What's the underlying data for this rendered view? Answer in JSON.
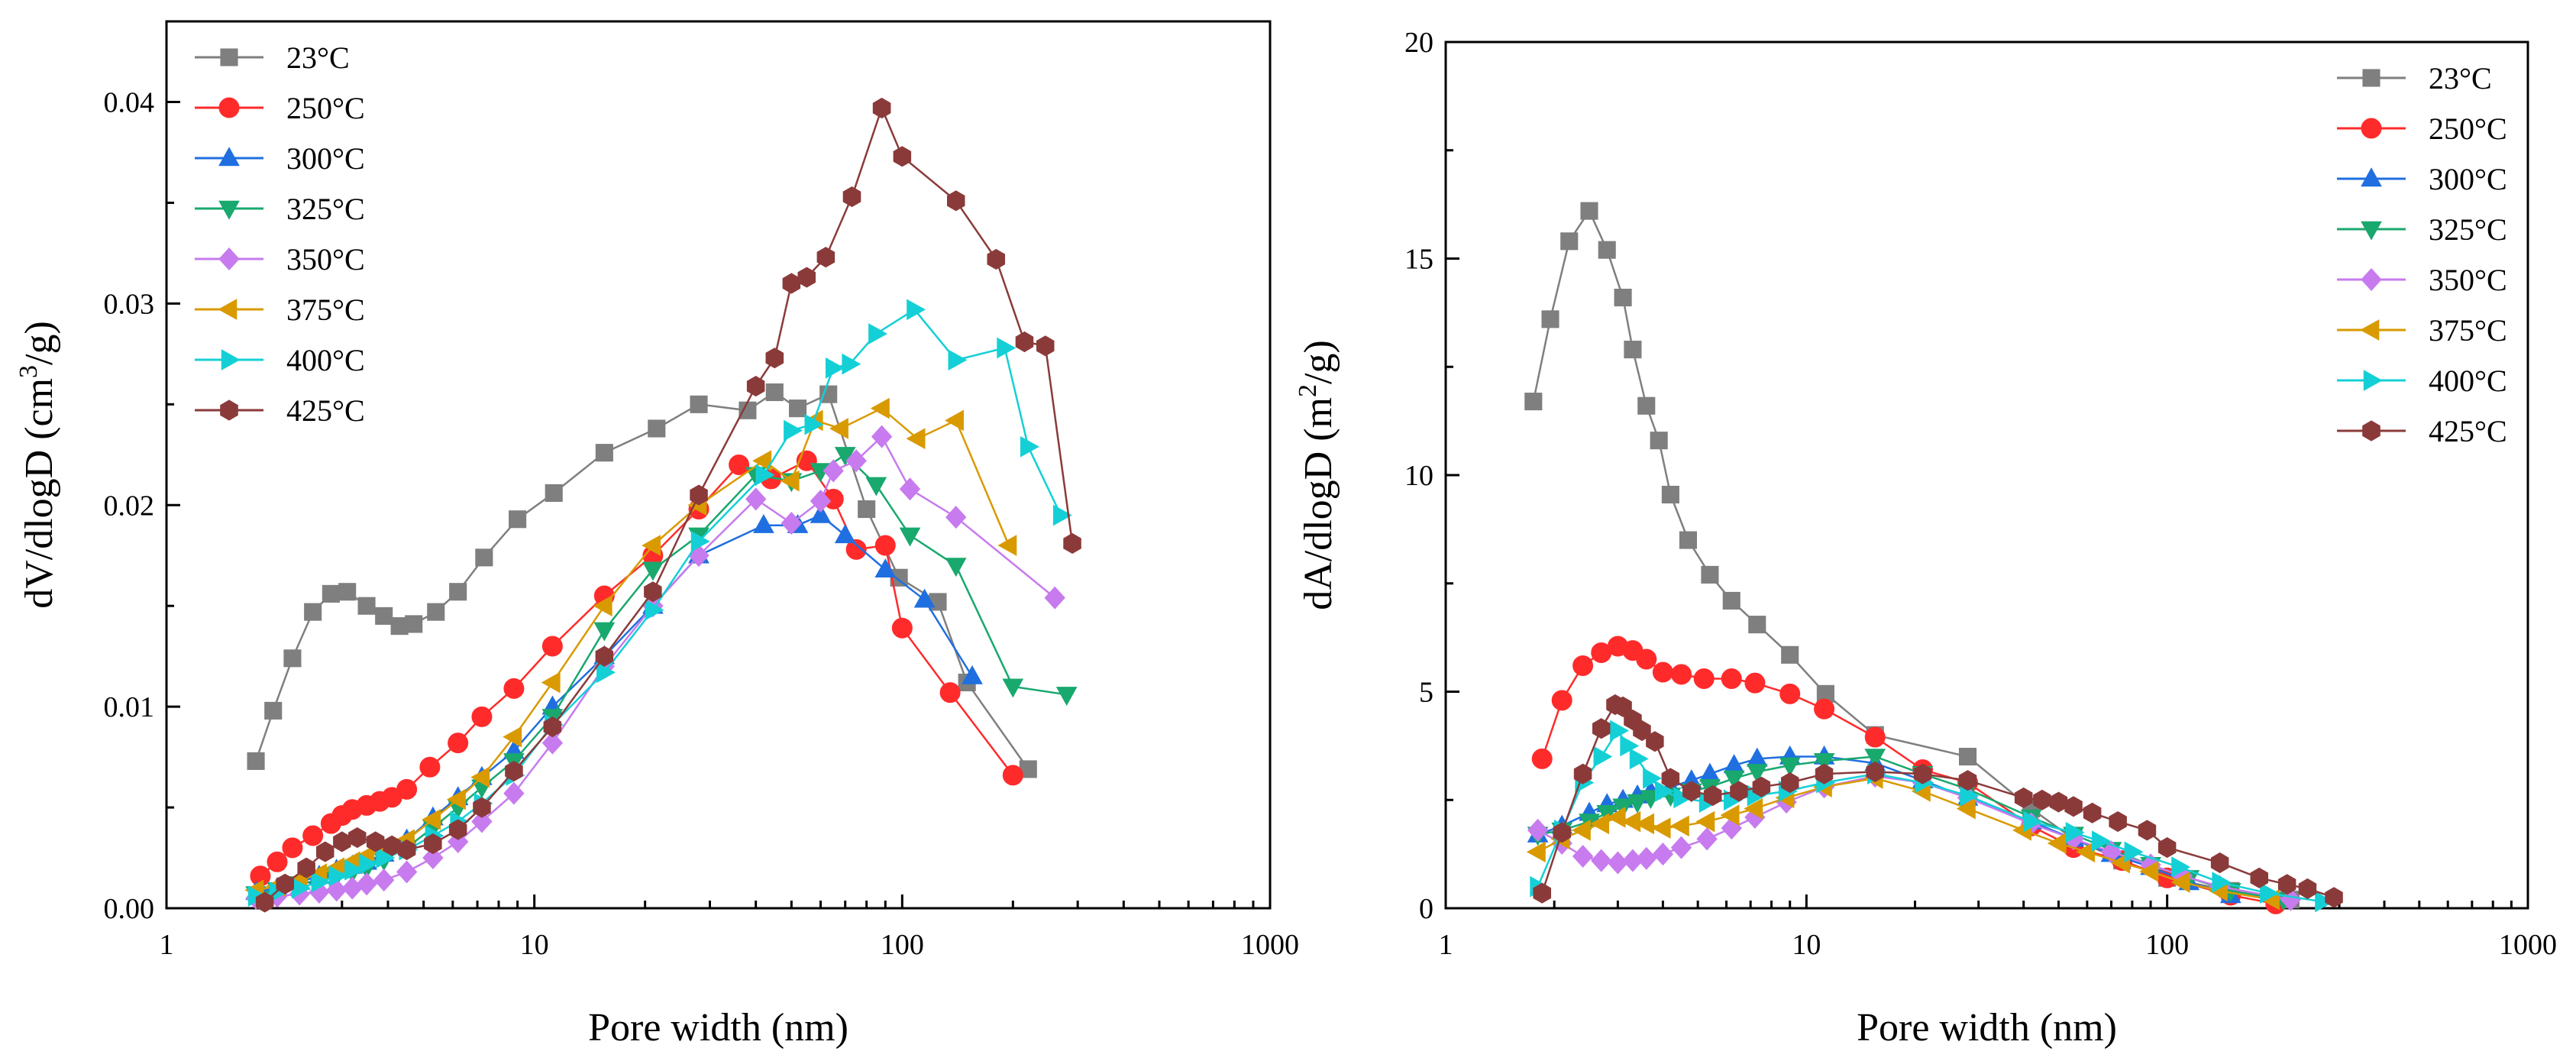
{
  "chart_data": [
    {
      "type": "line",
      "id": "pore-volume",
      "xscale": "log",
      "xlim": [
        1,
        1000
      ],
      "ylim": [
        0,
        0.044
      ],
      "xlabel": "Pore width (nm)",
      "ylabel_main": "dV/dlogD (cm",
      "ylabel_sup": "3",
      "ylabel_tail": "/g)",
      "x_ticks": [
        1,
        10,
        100,
        1000
      ],
      "x_tick_labels": [
        "1",
        "10",
        "100",
        "1000"
      ],
      "y_ticks": [
        0,
        0.01,
        0.02,
        0.03,
        0.04
      ],
      "y_tick_labels": [
        "0.00",
        "0.01",
        "0.02",
        "0.03",
        "0.04"
      ],
      "legend_position": "top-left",
      "series": [
        {
          "name": "23°C",
          "color": "#7f7f7f",
          "marker": "square",
          "x": [
            1.75,
            1.95,
            2.2,
            2.5,
            2.8,
            3.1,
            3.5,
            3.9,
            4.3,
            4.7,
            5.4,
            6.2,
            7.3,
            9.0,
            11.3,
            15.5,
            21.5,
            28,
            38,
            45,
            52,
            63,
            80,
            98,
            125,
            150,
            220
          ],
          "y": [
            0.0073,
            0.0098,
            0.0124,
            0.0147,
            0.0156,
            0.0157,
            0.015,
            0.0145,
            0.014,
            0.0141,
            0.0147,
            0.0157,
            0.0174,
            0.0193,
            0.0206,
            0.0226,
            0.0238,
            0.025,
            0.0247,
            0.0256,
            0.0248,
            0.0255,
            0.0198,
            0.0164,
            0.0152,
            0.0112,
            0.0069
          ]
        },
        {
          "name": "250°C",
          "color": "#ff2b2b",
          "marker": "circle",
          "x": [
            1.8,
            2.0,
            2.2,
            2.5,
            2.8,
            3.0,
            3.2,
            3.5,
            3.8,
            4.1,
            4.5,
            5.2,
            6.2,
            7.2,
            8.8,
            11.2,
            15.5,
            21,
            28,
            36,
            44,
            55,
            65,
            75,
            90,
            100,
            135,
            200
          ],
          "y": [
            0.0016,
            0.0023,
            0.003,
            0.0036,
            0.0042,
            0.0046,
            0.0049,
            0.0051,
            0.0053,
            0.0055,
            0.0059,
            0.007,
            0.0082,
            0.0095,
            0.0109,
            0.013,
            0.0155,
            0.0175,
            0.0198,
            0.022,
            0.0213,
            0.0222,
            0.0203,
            0.0178,
            0.018,
            0.0139,
            0.0107,
            0.0066
          ]
        },
        {
          "name": "300°C",
          "color": "#1f6fe0",
          "marker": "triangle-up",
          "x": [
            1.75,
            2.0,
            2.3,
            2.6,
            2.9,
            3.2,
            3.5,
            3.9,
            4.5,
            5.3,
            6.2,
            7.2,
            8.8,
            11.2,
            15.5,
            21,
            28,
            42,
            52,
            60,
            70,
            90,
            115,
            155
          ],
          "y": [
            0.0008,
            0.001,
            0.0013,
            0.0016,
            0.0019,
            0.0021,
            0.0023,
            0.0027,
            0.0034,
            0.0045,
            0.0055,
            0.0065,
            0.0078,
            0.01,
            0.0125,
            0.015,
            0.0175,
            0.019,
            0.019,
            0.0195,
            0.0185,
            0.0168,
            0.0153,
            0.0115
          ]
        },
        {
          "name": "325°C",
          "color": "#19a86e",
          "marker": "triangle-down",
          "x": [
            1.75,
            2.0,
            2.3,
            2.6,
            2.9,
            3.2,
            3.5,
            3.9,
            4.5,
            5.3,
            6.2,
            7.2,
            8.8,
            11.2,
            15.5,
            21,
            28,
            40,
            50,
            60,
            70,
            85,
            105,
            140,
            200,
            280
          ],
          "y": [
            0.0007,
            0.0009,
            0.0012,
            0.0014,
            0.0016,
            0.0018,
            0.002,
            0.0024,
            0.003,
            0.004,
            0.005,
            0.006,
            0.0073,
            0.0095,
            0.0138,
            0.0168,
            0.0185,
            0.0215,
            0.0212,
            0.0217,
            0.0225,
            0.021,
            0.0185,
            0.017,
            0.011,
            0.0106
          ]
        },
        {
          "name": "350°C",
          "color": "#c77bee",
          "marker": "diamond",
          "x": [
            1.75,
            2.0,
            2.3,
            2.6,
            2.9,
            3.2,
            3.5,
            3.9,
            4.5,
            5.3,
            6.2,
            7.2,
            8.8,
            11.2,
            15.5,
            21,
            28,
            40,
            50,
            60,
            65,
            75,
            88,
            105,
            140,
            260
          ],
          "y": [
            0.0005,
            0.0006,
            0.0007,
            0.0008,
            0.0009,
            0.001,
            0.0012,
            0.0014,
            0.0018,
            0.0025,
            0.0033,
            0.0043,
            0.0057,
            0.0082,
            0.012,
            0.015,
            0.0175,
            0.0203,
            0.0191,
            0.0202,
            0.0217,
            0.0222,
            0.0234,
            0.0208,
            0.0194,
            0.0154
          ]
        },
        {
          "name": "375°C",
          "color": "#d99a00",
          "marker": "triangle-left",
          "x": [
            1.75,
            2.0,
            2.3,
            2.6,
            2.9,
            3.2,
            3.5,
            3.9,
            4.5,
            5.3,
            6.2,
            7.2,
            8.8,
            11.2,
            15.5,
            21,
            28,
            42,
            50,
            58,
            68,
            88,
            110,
            140,
            195
          ],
          "y": [
            0.0009,
            0.0011,
            0.0014,
            0.0017,
            0.002,
            0.0023,
            0.0026,
            0.0029,
            0.0034,
            0.0044,
            0.0054,
            0.0065,
            0.0085,
            0.0112,
            0.015,
            0.018,
            0.02,
            0.0222,
            0.0212,
            0.0242,
            0.0238,
            0.0248,
            0.0233,
            0.0242,
            0.018
          ]
        },
        {
          "name": "400°C",
          "color": "#14d0d6",
          "marker": "triangle-right",
          "x": [
            1.75,
            2.0,
            2.3,
            2.6,
            2.9,
            3.2,
            3.5,
            3.9,
            4.5,
            5.3,
            6.2,
            7.2,
            8.8,
            11.2,
            15.5,
            21,
            28,
            42,
            50,
            57,
            65,
            72,
            85,
            108,
            140,
            190,
            220,
            270
          ],
          "y": [
            0.0006,
            0.0008,
            0.001,
            0.0013,
            0.0016,
            0.0019,
            0.0022,
            0.0025,
            0.0029,
            0.0036,
            0.0043,
            0.0052,
            0.0066,
            0.0091,
            0.0117,
            0.0148,
            0.0182,
            0.0215,
            0.0237,
            0.024,
            0.0268,
            0.027,
            0.0285,
            0.0297,
            0.0272,
            0.0278,
            0.0229,
            0.0195
          ]
        },
        {
          "name": "425°C",
          "color": "#8b3a3a",
          "marker": "hexagon",
          "x": [
            1.85,
            2.1,
            2.4,
            2.7,
            3.0,
            3.3,
            3.7,
            4.1,
            4.5,
            5.3,
            6.2,
            7.2,
            8.8,
            11.2,
            15.5,
            21,
            28,
            40,
            45,
            50,
            55,
            62,
            73,
            88,
            100,
            140,
            180,
            215,
            245,
            290
          ],
          "y": [
            0.0003,
            0.0012,
            0.002,
            0.0028,
            0.0033,
            0.0035,
            0.0033,
            0.0031,
            0.0029,
            0.0032,
            0.0039,
            0.005,
            0.0068,
            0.009,
            0.0125,
            0.0157,
            0.0205,
            0.0259,
            0.0273,
            0.031,
            0.0313,
            0.0323,
            0.0353,
            0.0397,
            0.0373,
            0.0351,
            0.0322,
            0.0281,
            0.0279,
            0.0181
          ]
        }
      ]
    },
    {
      "type": "line",
      "id": "pore-area",
      "xscale": "log",
      "xlim": [
        1,
        1000
      ],
      "ylim": [
        0,
        20
      ],
      "xlabel": "Pore width (nm)",
      "ylabel_main": "dA/dlogD (m",
      "ylabel_sup": "2",
      "ylabel_tail": "/g)",
      "x_ticks": [
        1,
        10,
        100,
        1000
      ],
      "x_tick_labels": [
        "1",
        "10",
        "100",
        "1000"
      ],
      "y_ticks": [
        0,
        5,
        10,
        15,
        20
      ],
      "y_tick_labels": [
        "0",
        "5",
        "10",
        "15",
        "20"
      ],
      "legend_position": "top-right",
      "series": [
        {
          "name": "23°C",
          "color": "#7f7f7f",
          "marker": "square",
          "x": [
            1.75,
            1.95,
            2.2,
            2.5,
            2.8,
            3.1,
            3.3,
            3.6,
            3.9,
            4.2,
            4.7,
            5.4,
            6.2,
            7.3,
            9.0,
            11.3,
            15.5,
            28,
            42,
            55,
            75,
            100,
            150,
            220
          ],
          "y": [
            11.7,
            13.6,
            15.4,
            16.1,
            15.2,
            14.1,
            12.9,
            11.6,
            10.8,
            9.55,
            8.5,
            7.7,
            7.1,
            6.55,
            5.85,
            4.95,
            4.0,
            3.5,
            2.3,
            1.6,
            1.1,
            0.7,
            0.4,
            0.2
          ]
        },
        {
          "name": "250°C",
          "color": "#ff2b2b",
          "marker": "circle",
          "x": [
            1.85,
            2.1,
            2.4,
            2.7,
            3.0,
            3.3,
            3.6,
            4.0,
            4.5,
            5.2,
            6.2,
            7.2,
            9.0,
            11.2,
            15.5,
            21,
            28,
            42,
            55,
            75,
            100,
            150,
            200
          ],
          "y": [
            3.45,
            4.8,
            5.6,
            5.9,
            6.05,
            5.95,
            5.75,
            5.45,
            5.4,
            5.3,
            5.3,
            5.2,
            4.95,
            4.6,
            3.95,
            3.2,
            2.9,
            1.9,
            1.4,
            1.1,
            0.7,
            0.3,
            0.1
          ]
        },
        {
          "name": "300°C",
          "color": "#1f6fe0",
          "marker": "triangle-up",
          "x": [
            1.8,
            2.1,
            2.5,
            2.8,
            3.1,
            3.4,
            3.7,
            4.2,
            4.8,
            5.4,
            6.3,
            7.3,
            9.0,
            11.2,
            15.5,
            21,
            28,
            42,
            55,
            70,
            90,
            115,
            150
          ],
          "y": [
            1.7,
            1.9,
            2.2,
            2.4,
            2.5,
            2.6,
            2.7,
            2.8,
            2.95,
            3.1,
            3.3,
            3.45,
            3.5,
            3.5,
            3.35,
            2.95,
            2.55,
            2.0,
            1.6,
            1.25,
            0.95,
            0.6,
            0.3
          ]
        },
        {
          "name": "325°C",
          "color": "#19a86e",
          "marker": "triangle-down",
          "x": [
            1.8,
            2.1,
            2.5,
            2.8,
            3.1,
            3.4,
            3.7,
            4.2,
            4.8,
            5.4,
            6.3,
            7.3,
            9.0,
            11.2,
            15.5,
            21,
            28,
            42,
            55,
            70,
            90,
            115,
            150,
            210
          ],
          "y": [
            1.7,
            1.8,
            2.0,
            2.2,
            2.35,
            2.45,
            2.55,
            2.6,
            2.7,
            2.8,
            3.0,
            3.15,
            3.3,
            3.4,
            3.5,
            3.1,
            2.75,
            2.1,
            1.7,
            1.35,
            1.0,
            0.7,
            0.4,
            0.2
          ]
        },
        {
          "name": "350°C",
          "color": "#c77bee",
          "marker": "diamond",
          "x": [
            1.8,
            2.1,
            2.4,
            2.7,
            3.0,
            3.3,
            3.6,
            4.0,
            4.5,
            5.3,
            6.2,
            7.2,
            8.8,
            11.2,
            15.5,
            21,
            28,
            42,
            55,
            70,
            90,
            110,
            140,
            220
          ],
          "y": [
            1.8,
            1.5,
            1.2,
            1.1,
            1.05,
            1.1,
            1.15,
            1.25,
            1.4,
            1.6,
            1.85,
            2.1,
            2.45,
            2.8,
            3.05,
            2.9,
            2.55,
            1.95,
            1.6,
            1.3,
            1.0,
            0.75,
            0.5,
            0.2
          ]
        },
        {
          "name": "375°C",
          "color": "#d99a00",
          "marker": "triangle-left",
          "x": [
            1.8,
            2.1,
            2.4,
            2.7,
            3.0,
            3.3,
            3.6,
            4.0,
            4.5,
            5.3,
            6.2,
            7.2,
            8.8,
            11.2,
            15.5,
            21,
            28,
            40,
            50,
            60,
            75,
            90,
            110,
            140,
            195
          ],
          "y": [
            1.3,
            1.6,
            1.8,
            1.95,
            2.1,
            2.0,
            1.95,
            1.85,
            1.9,
            2.0,
            2.15,
            2.3,
            2.55,
            2.8,
            3.0,
            2.7,
            2.3,
            1.8,
            1.5,
            1.3,
            1.05,
            0.85,
            0.6,
            0.4,
            0.2
          ]
        },
        {
          "name": "400°C",
          "color": "#14d0d6",
          "marker": "triangle-right",
          "x": [
            1.8,
            2.1,
            2.4,
            2.7,
            3.0,
            3.2,
            3.4,
            3.7,
            4.0,
            4.5,
            5.3,
            6.2,
            7.2,
            8.8,
            11.2,
            15.5,
            21,
            28,
            42,
            55,
            65,
            80,
            108,
            140,
            190,
            270
          ],
          "y": [
            0.5,
            1.8,
            2.9,
            3.5,
            4.1,
            3.75,
            3.45,
            3.0,
            2.7,
            2.55,
            2.45,
            2.5,
            2.6,
            2.7,
            2.9,
            3.1,
            2.9,
            2.6,
            2.0,
            1.75,
            1.55,
            1.3,
            0.95,
            0.6,
            0.35,
            0.15
          ]
        },
        {
          "name": "425°C",
          "color": "#8b3a3a",
          "marker": "hexagon",
          "x": [
            1.85,
            2.1,
            2.4,
            2.7,
            2.95,
            3.1,
            3.3,
            3.5,
            3.8,
            4.2,
            4.8,
            5.5,
            6.5,
            7.5,
            9.0,
            11.2,
            15.5,
            21,
            28,
            40,
            45,
            50,
            55,
            62,
            73,
            88,
            100,
            140,
            180,
            215,
            245,
            290
          ],
          "y": [
            0.35,
            1.75,
            3.1,
            4.15,
            4.7,
            4.65,
            4.35,
            4.1,
            3.85,
            3.0,
            2.7,
            2.6,
            2.7,
            2.8,
            2.9,
            3.1,
            3.15,
            3.1,
            2.95,
            2.55,
            2.5,
            2.45,
            2.35,
            2.2,
            2.0,
            1.8,
            1.4,
            1.05,
            0.7,
            0.55,
            0.45,
            0.25
          ]
        }
      ]
    }
  ]
}
